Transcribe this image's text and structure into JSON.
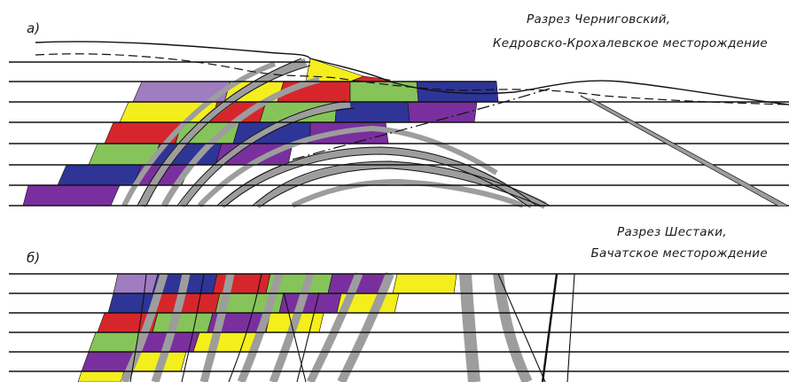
{
  "panels": [
    {
      "letter": "а)",
      "caption_line1": "Разрез Черниговский,",
      "caption_line2": "Кедровско-Крохалевское месторождение"
    },
    {
      "letter": "б)",
      "caption_line1": "Разрез Шестаки,",
      "caption_line2": "Бачатское месторождение"
    }
  ],
  "colors": {
    "lilac": "#a07cc0",
    "yellow": "#f4ee1c",
    "red": "#d7262b",
    "green": "#86c45a",
    "blue": "#2e3597",
    "purple": "#7a2f9e",
    "gray": "#9d9d9d",
    "line": "#111111"
  }
}
